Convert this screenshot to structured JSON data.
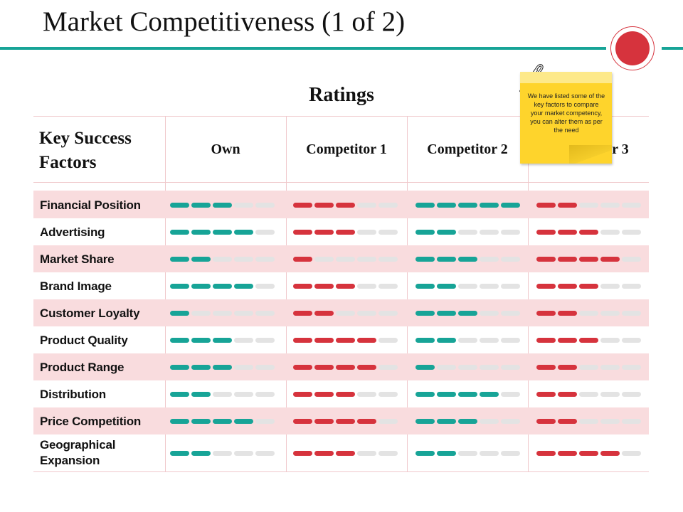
{
  "title": "Market Competitiveness (1 of 2)",
  "ratings_label": "Ratings",
  "header": {
    "key_success_factors": "Key Success Factors",
    "columns": [
      "Own",
      "Competitor 1",
      "Competitor 2",
      "Competitor 3"
    ]
  },
  "note": {
    "text": "We have listed some of the key factors to compare your market competency, you can alter them as per the need"
  },
  "scale_max": 5,
  "column_colors": [
    "#17a497",
    "#d6333d",
    "#17a497",
    "#d6333d"
  ],
  "rows": [
    {
      "label": "Financial Position",
      "ratings": [
        3,
        3,
        5,
        2
      ]
    },
    {
      "label": "Advertising",
      "ratings": [
        4,
        3,
        2,
        3
      ]
    },
    {
      "label": "Market Share",
      "ratings": [
        2,
        1,
        3,
        4
      ]
    },
    {
      "label": "Brand Image",
      "ratings": [
        4,
        3,
        2,
        3
      ]
    },
    {
      "label": "Customer Loyalty",
      "ratings": [
        1,
        2,
        3,
        2
      ]
    },
    {
      "label": "Product Quality",
      "ratings": [
        3,
        4,
        2,
        3
      ]
    },
    {
      "label": "Product Range",
      "ratings": [
        3,
        4,
        1,
        2
      ]
    },
    {
      "label": "Distribution",
      "ratings": [
        2,
        3,
        4,
        2
      ]
    },
    {
      "label": "Price Competition",
      "ratings": [
        4,
        4,
        3,
        2
      ]
    },
    {
      "label": "Geographical Expansion",
      "ratings": [
        2,
        3,
        2,
        4
      ]
    }
  ]
}
